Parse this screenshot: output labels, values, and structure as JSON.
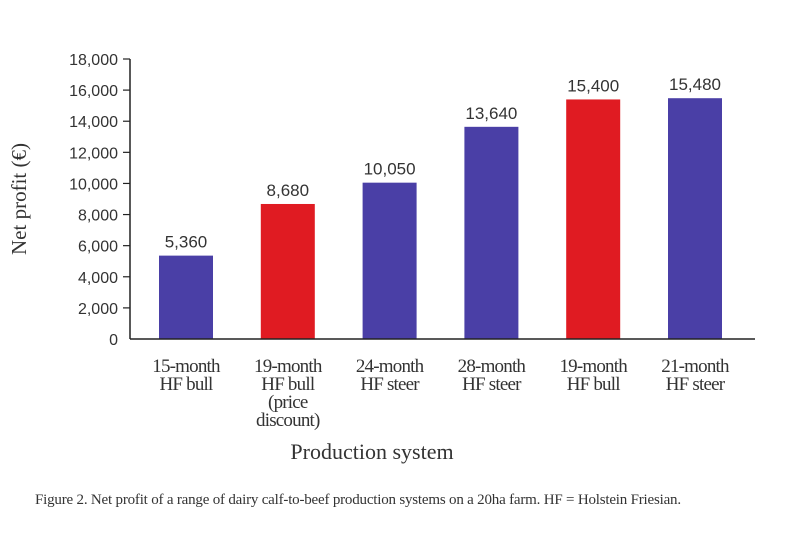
{
  "chart_data": {
    "type": "bar",
    "title": "",
    "xlabel": "Production system",
    "ylabel": "Net profit (€)",
    "ylim": [
      0,
      18000
    ],
    "yticks": [
      0,
      2000,
      4000,
      6000,
      8000,
      10000,
      12000,
      14000,
      16000,
      18000
    ],
    "ytick_labels": [
      "0",
      "2,000",
      "4,000",
      "6,000",
      "8,000",
      "10,000",
      "12,000",
      "14,000",
      "16,000",
      "18,000"
    ],
    "categories": [
      [
        "15-month",
        "HF bull"
      ],
      [
        "19-month",
        "HF bull",
        "(price",
        "discount)"
      ],
      [
        "24-month",
        "HF steer"
      ],
      [
        "28-month",
        "HF steer"
      ],
      [
        "19-month",
        "HF bull"
      ],
      [
        "21-month",
        "HF steer"
      ]
    ],
    "values": [
      5360,
      8680,
      10050,
      13640,
      15400,
      15480
    ],
    "value_labels": [
      "5,360",
      "8,680",
      "10,050",
      "13,640",
      "15,400",
      "15,480"
    ],
    "bar_colors": [
      "#4a3fa6",
      "#e01b22",
      "#4a3fa6",
      "#4a3fa6",
      "#e01b22",
      "#4a3fa6"
    ],
    "grid": false
  },
  "caption": "Figure 2. Net profit of a range of dairy calf-to-beef production systems on a 20ha farm. HF = Holstein Friesian."
}
